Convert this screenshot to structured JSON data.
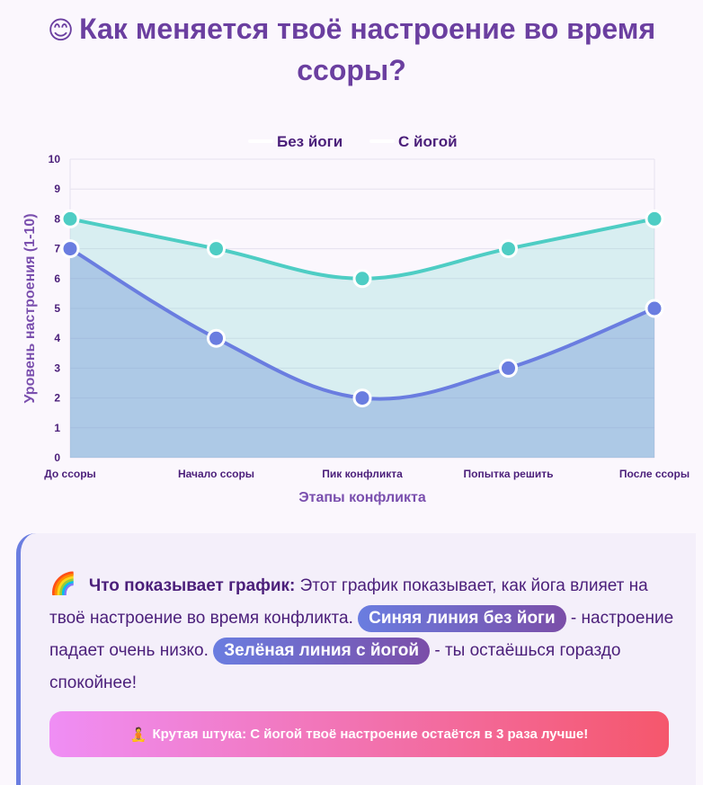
{
  "header": {
    "emoji": "😊",
    "title": "Как меняется твоё настроение во время ссоры?"
  },
  "chart_data": {
    "type": "line",
    "x": [
      "До ссоры",
      "Начало ссоры",
      "Пик конфликта",
      "Попытка решить",
      "После ссоры"
    ],
    "series": [
      {
        "name": "Без йоги",
        "values": [
          7,
          4,
          2,
          3,
          5
        ],
        "color": "#6a7de0"
      },
      {
        "name": "С йогой",
        "values": [
          8,
          7,
          6,
          7,
          8
        ],
        "color": "#4ecdc4"
      }
    ],
    "xlabel": "Этапы конфликта",
    "ylabel": "Уровень настроения (1-10)",
    "ylim": [
      0,
      10
    ],
    "yticks": [
      0,
      1,
      2,
      3,
      4,
      5,
      6,
      7,
      8,
      9,
      10
    ],
    "grid": true,
    "legend": "top",
    "fill": true
  },
  "explanation": {
    "emoji": "🌈",
    "lead": "Что показывает график:",
    "text1": " Этот график показывает, как йога влияет на твоё настроение во время конфликта.",
    "pill1": "Синяя линия без йоги",
    "text2": " - настроение падает очень низко.",
    "pill2": "Зелёная линия с йогой",
    "text3": " - ты остаёшься гораздо спокойнее!"
  },
  "banner": {
    "emoji": "🧘",
    "text": "Крутая штука: С йогой твоё настроение остаётся в 3 раза лучше!"
  }
}
